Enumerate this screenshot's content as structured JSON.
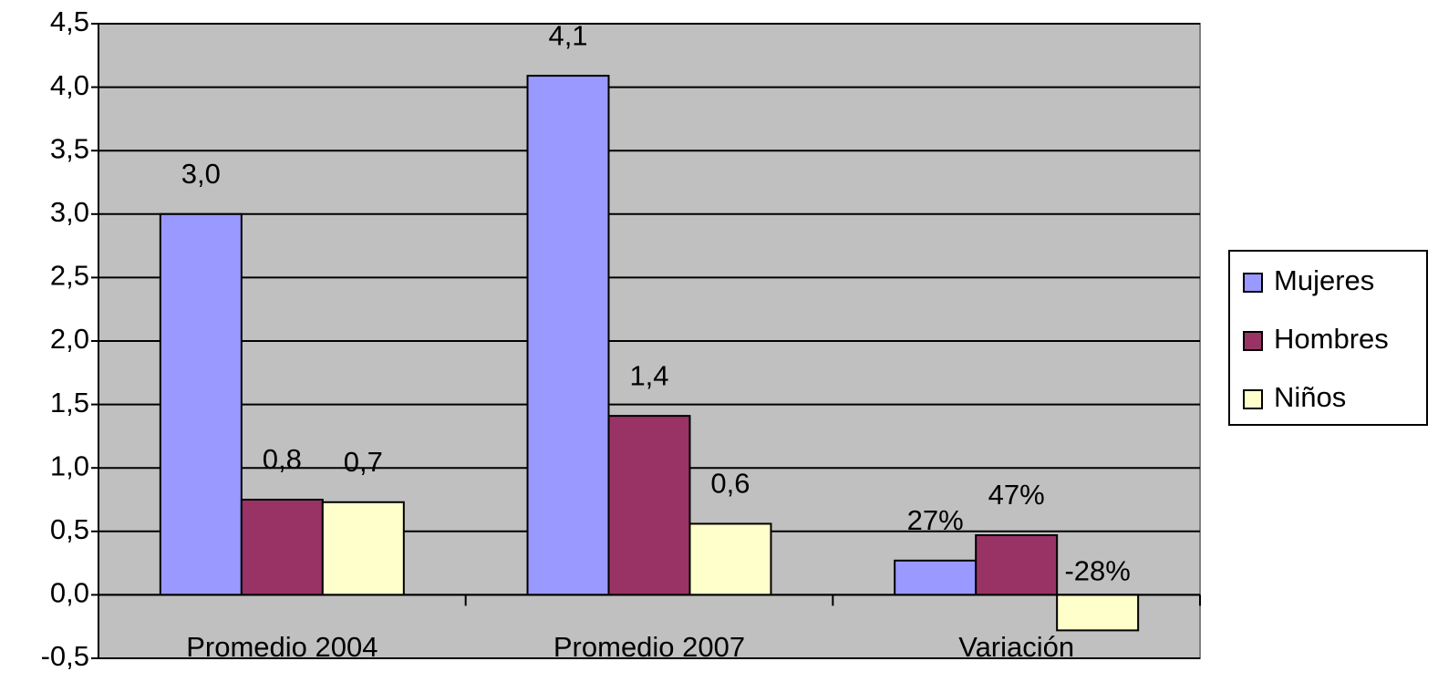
{
  "chart_data": {
    "type": "bar",
    "categories": [
      "Promedio 2004",
      "Promedio 2007",
      "Variación"
    ],
    "series": [
      {
        "name": "Mujeres",
        "color": "#9999ff",
        "values": [
          3.0,
          4.09,
          0.27
        ],
        "value_labels": [
          "3,0",
          "4,1",
          "27%"
        ]
      },
      {
        "name": "Hombres",
        "color": "#993366",
        "values": [
          0.75,
          1.41,
          0.47
        ],
        "value_labels": [
          "0,8",
          "1,4",
          "47%"
        ]
      },
      {
        "name": "Niños",
        "color": "#ffffcc",
        "values": [
          0.73,
          0.56,
          -0.28
        ],
        "value_labels": [
          "0,7",
          "0,6",
          "-28%"
        ]
      }
    ],
    "ylim": [
      -0.5,
      4.5
    ],
    "yticks": [
      {
        "value": -0.5,
        "label": "-0,5"
      },
      {
        "value": 0,
        "label": "0,0"
      },
      {
        "value": 0.5,
        "label": "0,5"
      },
      {
        "value": 1,
        "label": "1,0"
      },
      {
        "value": 1.5,
        "label": "1,5"
      },
      {
        "value": 2,
        "label": "2,0"
      },
      {
        "value": 2.5,
        "label": "2,5"
      },
      {
        "value": 3,
        "label": "3,0"
      },
      {
        "value": 3.5,
        "label": "3,5"
      },
      {
        "value": 4,
        "label": "4,0"
      },
      {
        "value": 4.5,
        "label": "4,5"
      }
    ],
    "grid": true,
    "legend": "right",
    "background": "#c0c0c0"
  }
}
